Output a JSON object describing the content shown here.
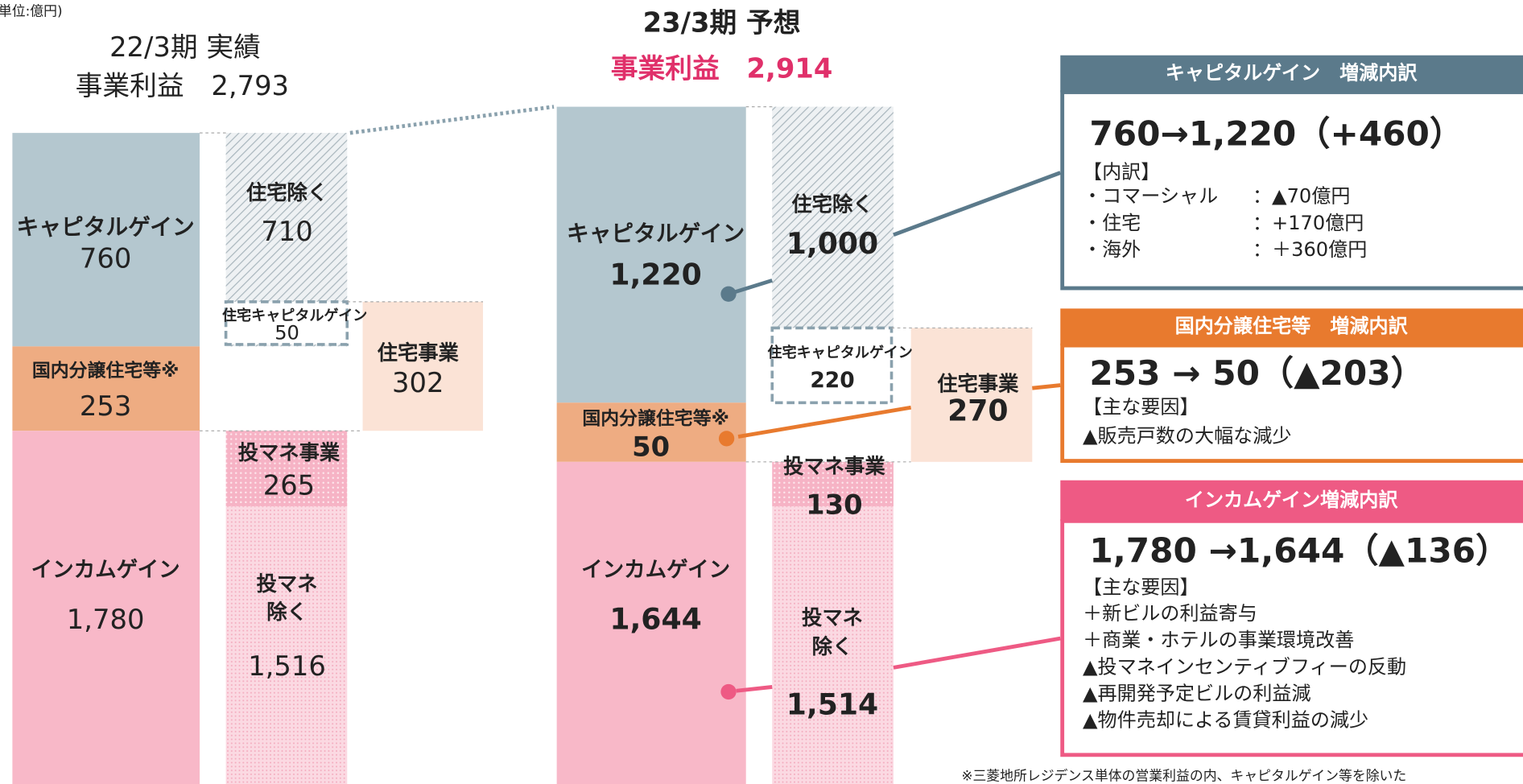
{
  "unit": "(単位:億円)",
  "fy22": {
    "title": "22/3期 実績",
    "profit": "事業利益　2,793",
    "capital": {
      "label": "キャピタルゲイン",
      "value": "760",
      "excl_label": "住宅除く",
      "excl_value": "710",
      "housing_label": "住宅キャピタルゲイン",
      "housing_value": "50"
    },
    "domestic": {
      "label": "国内分譲住宅等※",
      "value": "253"
    },
    "housing_business": {
      "label": "住宅事業",
      "value": "302"
    },
    "income": {
      "label": "インカムゲイン",
      "value": "1,780",
      "invest_label": "投マネ事業",
      "invest_value": "265",
      "excl_label": [
        "投マネ",
        "除く"
      ],
      "excl_value": "1,516"
    }
  },
  "fy23": {
    "title": "23/3期 予想",
    "profit": "事業利益　2,914",
    "capital": {
      "label": "キャピタルゲイン",
      "value": "1,220",
      "excl_label": "住宅除く",
      "excl_value": "1,000",
      "housing_label": "住宅キャピタルゲイン",
      "housing_value": "220"
    },
    "domestic": {
      "label": "国内分譲住宅等※",
      "value": "50"
    },
    "housing_business": {
      "label": "住宅事業",
      "value": "270"
    },
    "income": {
      "label": "インカムゲイン",
      "value": "1,644",
      "invest_label": "投マネ事業",
      "invest_value": "130",
      "excl_label": [
        "投マネ",
        "除く"
      ],
      "excl_value": "1,514"
    }
  },
  "panels": [
    {
      "title": "キャピタルゲイン　増減内訳",
      "headline": "760→1,220（+460）",
      "sub": "【内訳】",
      "lines": [
        [
          "・コマーシャル",
          "：▲70億円"
        ],
        [
          "・住宅",
          "：+170億円"
        ],
        [
          "・海外",
          "：＋360億円"
        ]
      ]
    },
    {
      "title": "国内分譲住宅等　増減内訳",
      "headline": "253 → 50（▲203）",
      "sub": "【主な要因】",
      "lines": [
        [
          "▲販売戸数の大幅な減少"
        ]
      ]
    },
    {
      "title": "インカムゲイン増減内訳",
      "headline": "1,780 →1,644（▲136）",
      "sub": "【主な要因】",
      "lines": [
        [
          "＋新ビルの利益寄与"
        ],
        [
          "＋商業・ホテルの事業環境改善"
        ],
        [
          "▲投マネインセンティブフィーの反動"
        ],
        [
          "▲再開発予定ビルの利益減"
        ],
        [
          "▲物件売却による賃貸利益の減少"
        ]
      ]
    }
  ],
  "footnote": "※三菱地所レジデンス単体の営業利益の内、キャピタルゲイン等を除いた"
}
